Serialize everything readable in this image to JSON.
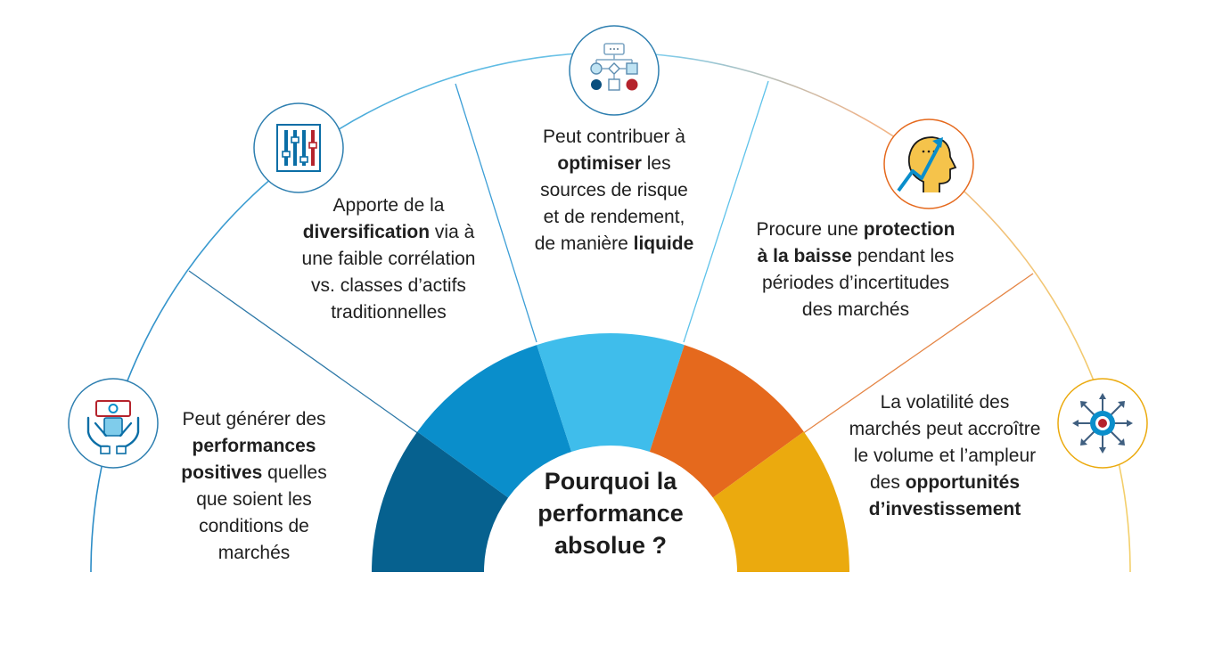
{
  "center": {
    "line1": "Pourquoi la",
    "line2": "performance",
    "line3": "absolue ?"
  },
  "segments": [
    {
      "name": "performance",
      "color": "#06618F",
      "lines": [
        [
          {
            "t": "Peut générer des",
            "b": false
          }
        ],
        [
          {
            "t": "performances",
            "b": true
          }
        ],
        [
          {
            "t": "positives",
            "b": true
          },
          {
            "t": " quelles",
            "b": false
          }
        ],
        [
          {
            "t": "que soient les",
            "b": false
          }
        ],
        [
          {
            "t": "conditions de",
            "b": false
          }
        ],
        [
          {
            "t": "marchés",
            "b": false
          }
        ]
      ]
    },
    {
      "name": "diversification",
      "color": "#0A8ECB",
      "lines": [
        [
          {
            "t": "Apporte de la",
            "b": false
          }
        ],
        [
          {
            "t": "diversification",
            "b": true
          },
          {
            "t": " via à",
            "b": false
          }
        ],
        [
          {
            "t": "une faible corrélation",
            "b": false
          }
        ],
        [
          {
            "t": "vs. classes d’actifs",
            "b": false
          }
        ],
        [
          {
            "t": "traditionnelles",
            "b": false
          }
        ]
      ]
    },
    {
      "name": "optimisation",
      "color": "#3FBDEB",
      "lines": [
        [
          {
            "t": "Peut contribuer à",
            "b": false
          }
        ],
        [
          {
            "t": "optimiser",
            "b": true
          },
          {
            "t": " les",
            "b": false
          }
        ],
        [
          {
            "t": "sources de risque",
            "b": false
          }
        ],
        [
          {
            "t": "et de rendement,",
            "b": false
          }
        ],
        [
          {
            "t": "de manière ",
            "b": false
          },
          {
            "t": "liquide",
            "b": true
          }
        ]
      ]
    },
    {
      "name": "protection",
      "color": "#E5691D",
      "lines": [
        [
          {
            "t": "Procure une ",
            "b": false
          },
          {
            "t": "protection",
            "b": true
          }
        ],
        [
          {
            "t": "à la baisse",
            "b": true
          },
          {
            "t": " pendant les",
            "b": false
          }
        ],
        [
          {
            "t": "périodes d’incertitudes",
            "b": false
          }
        ],
        [
          {
            "t": "des marchés",
            "b": false
          }
        ]
      ]
    },
    {
      "name": "opportunites",
      "color": "#EBAA0E",
      "lines": [
        [
          {
            "t": "La volatilité des",
            "b": false
          }
        ],
        [
          {
            "t": "marchés peut accroître",
            "b": false
          }
        ],
        [
          {
            "t": "le volume et l’ampleur",
            "b": false
          }
        ],
        [
          {
            "t": "des ",
            "b": false
          },
          {
            "t": "opportunités",
            "b": true
          }
        ],
        [
          {
            "t": "d’investissement",
            "b": true
          }
        ]
      ]
    }
  ],
  "colors": {
    "navy": "#06618F",
    "blue": "#0A8ECB",
    "sky": "#3FBDEB",
    "orange": "#E5691D",
    "yellow": "#EBAA0E",
    "red": "#B5232C",
    "text": "#1f1f1f"
  },
  "icons": [
    {
      "segment": "performance",
      "name": "hands-holding-money-icon"
    },
    {
      "segment": "diversification",
      "name": "equalizer-sliders-icon"
    },
    {
      "segment": "optimisation",
      "name": "flowchart-icon"
    },
    {
      "segment": "protection",
      "name": "head-growth-arrow-icon"
    },
    {
      "segment": "opportunites",
      "name": "target-arrows-icon"
    }
  ]
}
